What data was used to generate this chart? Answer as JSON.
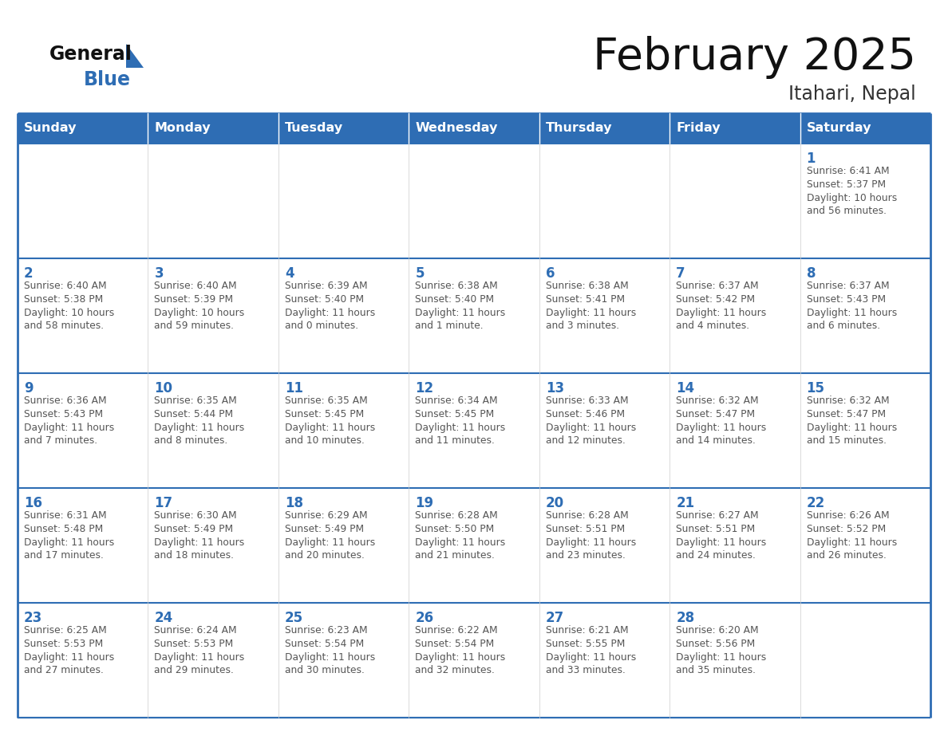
{
  "title": "February 2025",
  "subtitle": "Itahari, Nepal",
  "header_color": "#2e6db4",
  "header_text_color": "#ffffff",
  "days_of_week": [
    "Sunday",
    "Monday",
    "Tuesday",
    "Wednesday",
    "Thursday",
    "Friday",
    "Saturday"
  ],
  "cell_bg_color": "#ffffff",
  "cell_line_color": "#2e6db4",
  "day_number_color": "#2e6db4",
  "info_text_color": "#555555",
  "background_color": "#ffffff",
  "title_color": "#111111",
  "subtitle_color": "#333333",
  "logo_general_color": "#111111",
  "logo_blue_color": "#2e6db4",
  "logo_triangle_color": "#2e6db4",
  "calendar_data": [
    [
      null,
      null,
      null,
      null,
      null,
      null,
      {
        "day": 1,
        "sunrise": "6:41 AM",
        "sunset": "5:37 PM",
        "daylight": "10 hours and 56 minutes."
      }
    ],
    [
      {
        "day": 2,
        "sunrise": "6:40 AM",
        "sunset": "5:38 PM",
        "daylight": "10 hours and 58 minutes."
      },
      {
        "day": 3,
        "sunrise": "6:40 AM",
        "sunset": "5:39 PM",
        "daylight": "10 hours and 59 minutes."
      },
      {
        "day": 4,
        "sunrise": "6:39 AM",
        "sunset": "5:40 PM",
        "daylight": "11 hours and 0 minutes."
      },
      {
        "day": 5,
        "sunrise": "6:38 AM",
        "sunset": "5:40 PM",
        "daylight": "11 hours and 1 minute."
      },
      {
        "day": 6,
        "sunrise": "6:38 AM",
        "sunset": "5:41 PM",
        "daylight": "11 hours and 3 minutes."
      },
      {
        "day": 7,
        "sunrise": "6:37 AM",
        "sunset": "5:42 PM",
        "daylight": "11 hours and 4 minutes."
      },
      {
        "day": 8,
        "sunrise": "6:37 AM",
        "sunset": "5:43 PM",
        "daylight": "11 hours and 6 minutes."
      }
    ],
    [
      {
        "day": 9,
        "sunrise": "6:36 AM",
        "sunset": "5:43 PM",
        "daylight": "11 hours and 7 minutes."
      },
      {
        "day": 10,
        "sunrise": "6:35 AM",
        "sunset": "5:44 PM",
        "daylight": "11 hours and 8 minutes."
      },
      {
        "day": 11,
        "sunrise": "6:35 AM",
        "sunset": "5:45 PM",
        "daylight": "11 hours and 10 minutes."
      },
      {
        "day": 12,
        "sunrise": "6:34 AM",
        "sunset": "5:45 PM",
        "daylight": "11 hours and 11 minutes."
      },
      {
        "day": 13,
        "sunrise": "6:33 AM",
        "sunset": "5:46 PM",
        "daylight": "11 hours and 12 minutes."
      },
      {
        "day": 14,
        "sunrise": "6:32 AM",
        "sunset": "5:47 PM",
        "daylight": "11 hours and 14 minutes."
      },
      {
        "day": 15,
        "sunrise": "6:32 AM",
        "sunset": "5:47 PM",
        "daylight": "11 hours and 15 minutes."
      }
    ],
    [
      {
        "day": 16,
        "sunrise": "6:31 AM",
        "sunset": "5:48 PM",
        "daylight": "11 hours and 17 minutes."
      },
      {
        "day": 17,
        "sunrise": "6:30 AM",
        "sunset": "5:49 PM",
        "daylight": "11 hours and 18 minutes."
      },
      {
        "day": 18,
        "sunrise": "6:29 AM",
        "sunset": "5:49 PM",
        "daylight": "11 hours and 20 minutes."
      },
      {
        "day": 19,
        "sunrise": "6:28 AM",
        "sunset": "5:50 PM",
        "daylight": "11 hours and 21 minutes."
      },
      {
        "day": 20,
        "sunrise": "6:28 AM",
        "sunset": "5:51 PM",
        "daylight": "11 hours and 23 minutes."
      },
      {
        "day": 21,
        "sunrise": "6:27 AM",
        "sunset": "5:51 PM",
        "daylight": "11 hours and 24 minutes."
      },
      {
        "day": 22,
        "sunrise": "6:26 AM",
        "sunset": "5:52 PM",
        "daylight": "11 hours and 26 minutes."
      }
    ],
    [
      {
        "day": 23,
        "sunrise": "6:25 AM",
        "sunset": "5:53 PM",
        "daylight": "11 hours and 27 minutes."
      },
      {
        "day": 24,
        "sunrise": "6:24 AM",
        "sunset": "5:53 PM",
        "daylight": "11 hours and 29 minutes."
      },
      {
        "day": 25,
        "sunrise": "6:23 AM",
        "sunset": "5:54 PM",
        "daylight": "11 hours and 30 minutes."
      },
      {
        "day": 26,
        "sunrise": "6:22 AM",
        "sunset": "5:54 PM",
        "daylight": "11 hours and 32 minutes."
      },
      {
        "day": 27,
        "sunrise": "6:21 AM",
        "sunset": "5:55 PM",
        "daylight": "11 hours and 33 minutes."
      },
      {
        "day": 28,
        "sunrise": "6:20 AM",
        "sunset": "5:56 PM",
        "daylight": "11 hours and 35 minutes."
      },
      null
    ]
  ]
}
